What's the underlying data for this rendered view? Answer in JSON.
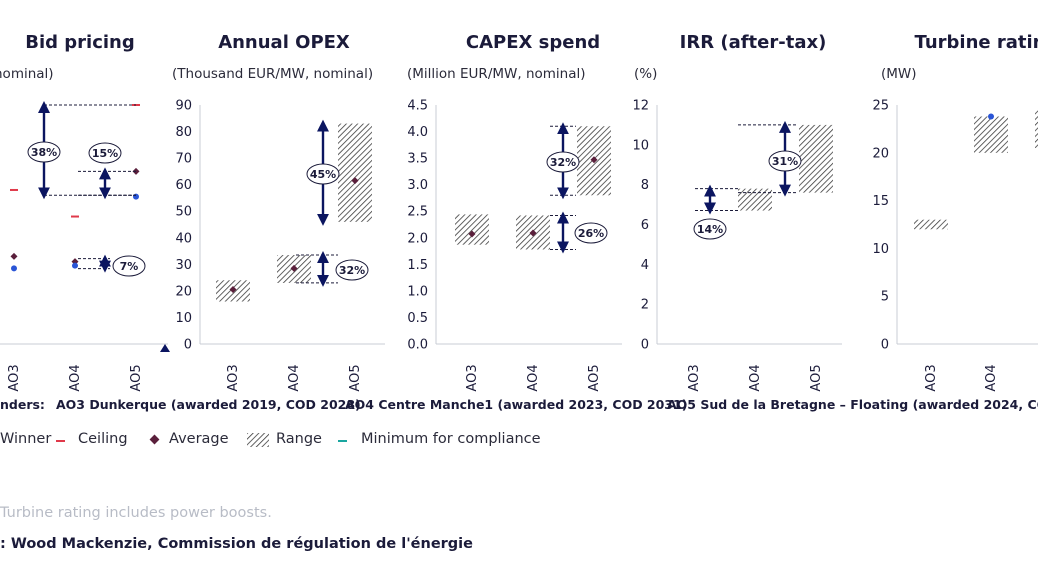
{
  "chart_data": [
    {
      "type": "range",
      "title": "Bid pricing",
      "unit": "nominal)",
      "categories": [
        "AO3",
        "AO4",
        "AO5"
      ],
      "ylim": [
        0,
        90
      ],
      "yticks": [],
      "ceiling": [
        58,
        48,
        90
      ],
      "winner": [
        28.5,
        29.5,
        55.5
      ],
      "average": [
        33,
        31,
        65
      ],
      "range": [],
      "annotations": [
        {
          "label": "38%",
          "from": 56,
          "to": 90
        },
        {
          "label": "15%",
          "from": 56,
          "to": 65
        },
        {
          "label": "7%",
          "from": 29.5,
          "to": 31
        }
      ]
    },
    {
      "type": "range",
      "title": "Annual OPEX",
      "unit": "(Thousand EUR/MW, nominal)",
      "categories": [
        "AO3",
        "AO4",
        "AO5"
      ],
      "ylim": [
        0,
        90
      ],
      "yticks": [
        "0",
        "10",
        "20",
        "30",
        "40",
        "50",
        "60",
        "70",
        "80",
        "90"
      ],
      "range": [
        [
          16,
          24
        ],
        [
          23,
          33.5
        ],
        [
          46,
          83
        ]
      ],
      "average": [
        20.5,
        28.5,
        61.5
      ],
      "annotations": [
        {
          "label": "45%",
          "from": 46,
          "to": 83
        },
        {
          "label": "32%",
          "from": 23,
          "to": 33.5
        }
      ]
    },
    {
      "type": "range",
      "title": "CAPEX spend",
      "unit": "(Million EUR/MW, nominal)",
      "categories": [
        "AO3",
        "AO4",
        "AO5"
      ],
      "ylim": [
        0,
        4.5
      ],
      "yticks": [
        "0.0",
        "0.5",
        "1.0",
        "1.5",
        "2.0",
        "2.5",
        "3.0",
        "3.5",
        "4.0",
        "4.5"
      ],
      "range": [
        [
          1.87,
          2.44
        ],
        [
          1.78,
          2.42
        ],
        [
          2.8,
          4.1
        ]
      ],
      "average": [
        2.07,
        2.09,
        3.47
      ],
      "annotations": [
        {
          "label": "32%",
          "from": 2.8,
          "to": 4.1
        },
        {
          "label": "26%",
          "from": 1.78,
          "to": 2.42
        }
      ]
    },
    {
      "type": "range",
      "title": "IRR (after-tax)",
      "unit": "(%)",
      "categories": [
        "AO3",
        "AO4",
        "AO5"
      ],
      "ylim": [
        0,
        12
      ],
      "yticks": [
        "0",
        "2",
        "4",
        "6",
        "8",
        "10",
        "12"
      ],
      "range": [
        null,
        [
          6.7,
          7.8
        ],
        [
          7.6,
          11
        ]
      ],
      "average": [],
      "annotations": [
        {
          "label": "14%",
          "from": 6.7,
          "to": 7.8
        },
        {
          "label": "31%",
          "from": 7.6,
          "to": 11
        }
      ]
    },
    {
      "type": "range",
      "title": "Turbine ratin",
      "unit": "(MW)",
      "categories": [
        "AO3",
        "AO4",
        "AO5"
      ],
      "ylim": [
        0,
        25
      ],
      "yticks": [
        "0",
        "5",
        "10",
        "15",
        "20",
        "25"
      ],
      "range": [
        [
          12,
          13
        ],
        [
          20,
          23.8
        ],
        [
          20.5,
          24.5
        ]
      ],
      "winner": [
        null,
        23.8,
        null
      ],
      "average": [],
      "annotations": []
    }
  ],
  "tenders": {
    "label": "nders:",
    "ao3": "AO3 Dunkerque (awarded 2019, COD 2028)",
    "ao4": "AO4 Centre Manche1 (awarded 2023, COD 2031)",
    "ao5": "AO5 Sud de la Bretagne – Floating (awarded 2024, COD 20"
  },
  "legend": {
    "winner": "Winner",
    "ceiling": "Ceiling",
    "average": "Average",
    "range": "Range",
    "minimum": "Minimum for compliance"
  },
  "note": "Turbine rating includes power boosts.",
  "source": ": Wood Mackenzie, Commission de régulation de l'énergie",
  "colors": {
    "navy": "#0b1560",
    "ceiling": "#e0394a",
    "average": "#5a1f3b",
    "winner": "#2a55d6",
    "minimum": "#1aa6a0",
    "hatch": "#3a3a3a"
  }
}
